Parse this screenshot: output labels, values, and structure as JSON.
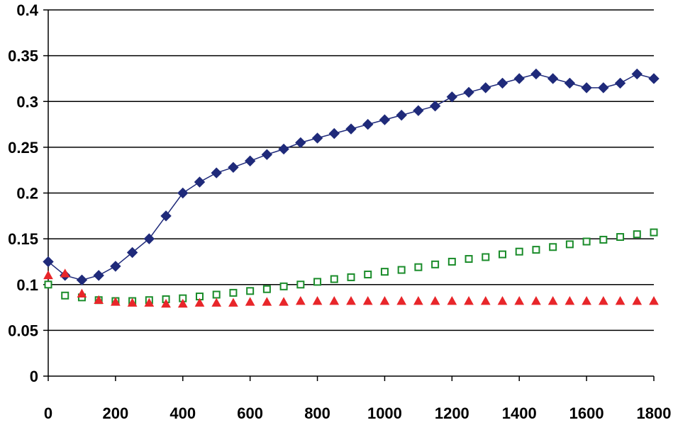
{
  "chart_data": {
    "type": "scatter",
    "title": "",
    "xlabel": "",
    "ylabel": "",
    "xlim": [
      0,
      1800
    ],
    "ylim": [
      0,
      0.4
    ],
    "x_ticks": [
      "0",
      "200",
      "400",
      "600",
      "800",
      "1000",
      "1200",
      "1400",
      "1600",
      "1800"
    ],
    "y_ticks": [
      "0",
      "0.05",
      "0.1",
      "0.15",
      "0.2",
      "0.25",
      "0.3",
      "0.35",
      "0.4"
    ],
    "grid": "horizontal",
    "legend": "none",
    "series": [
      {
        "marker": "diamond",
        "color": "#1f2a7a",
        "line": true,
        "x": [
          0,
          50,
          100,
          150,
          200,
          250,
          300,
          350,
          400,
          450,
          500,
          550,
          600,
          650,
          700,
          750,
          800,
          850,
          900,
          950,
          1000,
          1050,
          1100,
          1150,
          1200,
          1250,
          1300,
          1350,
          1400,
          1450,
          1500,
          1550,
          1600,
          1650,
          1700,
          1750,
          1800
        ],
        "y": [
          0.125,
          0.11,
          0.105,
          0.11,
          0.12,
          0.135,
          0.15,
          0.175,
          0.2,
          0.212,
          0.222,
          0.228,
          0.235,
          0.242,
          0.248,
          0.255,
          0.26,
          0.265,
          0.27,
          0.275,
          0.28,
          0.285,
          0.29,
          0.295,
          0.305,
          0.31,
          0.315,
          0.32,
          0.325,
          0.33,
          0.325,
          0.32,
          0.315,
          0.315,
          0.32,
          0.33,
          0.325
        ]
      },
      {
        "marker": "open-square",
        "color": "#1a8c2a",
        "line": false,
        "x": [
          0,
          50,
          100,
          150,
          200,
          250,
          300,
          350,
          400,
          450,
          500,
          550,
          600,
          650,
          700,
          750,
          800,
          850,
          900,
          950,
          1000,
          1050,
          1100,
          1150,
          1200,
          1250,
          1300,
          1350,
          1400,
          1450,
          1500,
          1550,
          1600,
          1650,
          1700,
          1750,
          1800
        ],
        "y": [
          0.1,
          0.088,
          0.086,
          0.083,
          0.082,
          0.082,
          0.083,
          0.084,
          0.085,
          0.087,
          0.089,
          0.091,
          0.093,
          0.095,
          0.098,
          0.1,
          0.103,
          0.106,
          0.108,
          0.111,
          0.114,
          0.116,
          0.119,
          0.122,
          0.125,
          0.128,
          0.13,
          0.133,
          0.136,
          0.138,
          0.141,
          0.144,
          0.147,
          0.149,
          0.152,
          0.155,
          0.157
        ]
      },
      {
        "marker": "triangle",
        "color": "#e8262a",
        "line": false,
        "x": [
          0,
          50,
          100,
          150,
          200,
          250,
          300,
          350,
          400,
          450,
          500,
          550,
          600,
          650,
          700,
          750,
          800,
          850,
          900,
          950,
          1000,
          1050,
          1100,
          1150,
          1200,
          1250,
          1300,
          1350,
          1400,
          1450,
          1500,
          1550,
          1600,
          1650,
          1700,
          1750,
          1800
        ],
        "y": [
          0.11,
          0.112,
          0.09,
          0.083,
          0.081,
          0.08,
          0.08,
          0.079,
          0.079,
          0.08,
          0.08,
          0.08,
          0.081,
          0.081,
          0.081,
          0.082,
          0.082,
          0.082,
          0.082,
          0.082,
          0.082,
          0.082,
          0.082,
          0.082,
          0.082,
          0.082,
          0.082,
          0.082,
          0.082,
          0.082,
          0.082,
          0.082,
          0.082,
          0.082,
          0.082,
          0.082,
          0.082
        ]
      }
    ]
  }
}
